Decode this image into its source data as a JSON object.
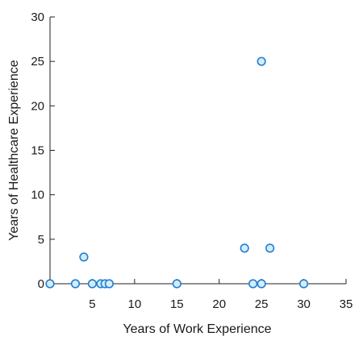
{
  "chart_data": {
    "type": "scatter",
    "title": "",
    "xlabel": "Years of Work Experience",
    "ylabel": "Years of Healthcare Experience",
    "xlim": [
      0,
      35
    ],
    "ylim": [
      0,
      30
    ],
    "xticks": [
      5,
      10,
      15,
      20,
      25,
      30,
      35
    ],
    "yticks": [
      0,
      5,
      10,
      15,
      20,
      25,
      30
    ],
    "grid": false,
    "legend": "none",
    "marker_fill": "#d6ecfb",
    "marker_stroke": "#1f7fd1",
    "series": [
      {
        "points": [
          {
            "x": 0,
            "y": 0
          },
          {
            "x": 3,
            "y": 0
          },
          {
            "x": 4,
            "y": 3
          },
          {
            "x": 5,
            "y": 0
          },
          {
            "x": 6,
            "y": 0
          },
          {
            "x": 6.5,
            "y": 0
          },
          {
            "x": 7,
            "y": 0
          },
          {
            "x": 15,
            "y": 0
          },
          {
            "x": 23,
            "y": 4
          },
          {
            "x": 24,
            "y": 0
          },
          {
            "x": 25,
            "y": 0
          },
          {
            "x": 25,
            "y": 25
          },
          {
            "x": 26,
            "y": 4
          },
          {
            "x": 30,
            "y": 0
          }
        ]
      }
    ]
  }
}
